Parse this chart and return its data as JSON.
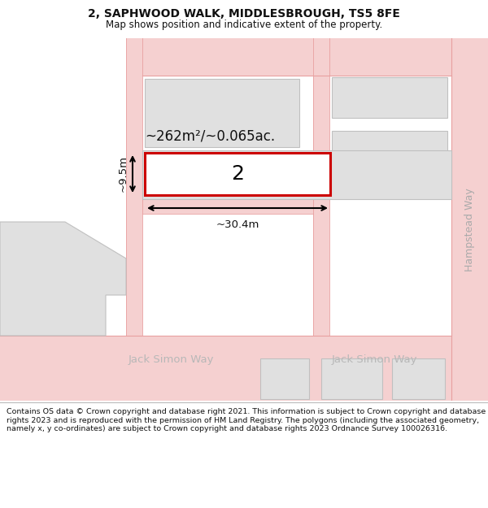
{
  "title": "2, SAPHWOOD WALK, MIDDLESBROUGH, TS5 8FE",
  "subtitle": "Map shows position and indicative extent of the property.",
  "footer": "Contains OS data © Crown copyright and database right 2021. This information is subject to Crown copyright and database rights 2023 and is reproduced with the permission of HM Land Registry. The polygons (including the associated geometry, namely x, y co-ordinates) are subject to Crown copyright and database rights 2023 Ordnance Survey 100026316.",
  "bg_color": "#ffffff",
  "road_fill": "#f5d0d0",
  "road_line": "#e8a0a0",
  "bld_fill": "#e0e0e0",
  "bld_line": "#c0c0c0",
  "plot_fill": "#ffffff",
  "plot_line": "#cc0000",
  "label_road": "#aaaaaa",
  "label_dim": "#000000",
  "area_label": "~262m²/~0.065ac.",
  "width_label": "~30.4m",
  "height_label": "~9.5m",
  "plot_label": "2",
  "hampstead": "Hampstead Way",
  "jack_left": "Jack Simon Way",
  "jack_right": "Jack Simon Way",
  "title_fontsize": 10,
  "subtitle_fontsize": 8.5,
  "footer_fontsize": 6.8
}
